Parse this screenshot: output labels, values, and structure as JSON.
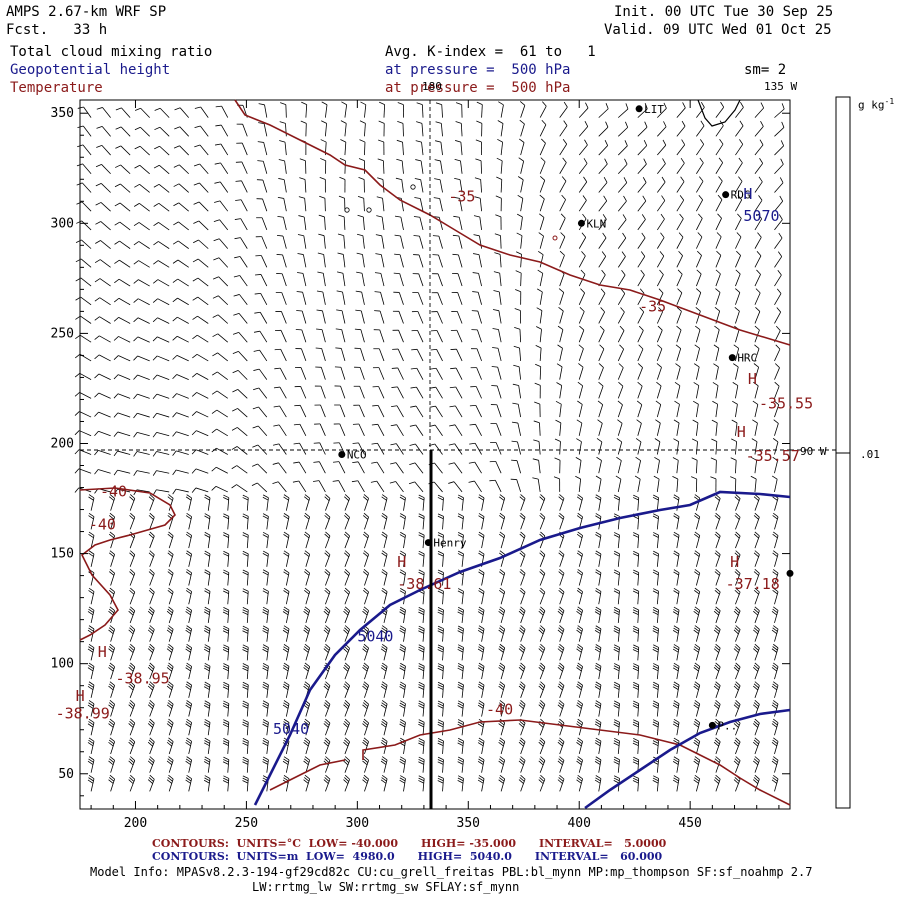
{
  "header": {
    "model": "AMPS 2.67-km WRF SP",
    "forecast": "Fcst.   33 h",
    "init": "Init. 00 UTC Tue 30 Sep 25",
    "valid": "Valid. 09 UTC Wed 01 Oct 25",
    "field1": "Total cloud mixing ratio",
    "field2": "Geopotential height",
    "field3": "Temperature",
    "avg": "Avg. K-index =  61 to   1",
    "pressure_blue": "at pressure =  500 hPa",
    "pressure_red": "at pressure =  500 hPa",
    "smoothing": "sm= 2"
  },
  "map": {
    "meridian_180": "180",
    "meridian_135w": "135 W",
    "meridian_90w": "90 W",
    "stations": [
      {
        "name": "LIT",
        "x": 427,
        "y": 352
      },
      {
        "name": "RDG",
        "x": 466,
        "y": 313
      },
      {
        "name": "KLN",
        "x": 401,
        "y": 300
      },
      {
        "name": "HRC",
        "x": 469,
        "y": 239
      },
      {
        "name": "NCO",
        "x": 293,
        "y": 195
      },
      {
        "name": "Henry",
        "x": 332,
        "y": 155
      },
      {
        "name": "",
        "x": 495,
        "y": 141
      },
      {
        "name": "P..",
        "x": 460,
        "y": 72
      }
    ],
    "temp_labels": [
      {
        "text": "-35",
        "x": 341,
        "y": 310
      },
      {
        "text": "-35",
        "x": 427,
        "y": 260
      },
      {
        "text": "-35.55",
        "x": 481,
        "y": 216
      },
      {
        "text": "-35.57",
        "x": 475,
        "y": 192
      },
      {
        "text": "-40",
        "x": 184,
        "y": 176
      },
      {
        "text": "-40",
        "x": 179,
        "y": 161
      },
      {
        "text": "-38.61",
        "x": 318,
        "y": 134
      },
      {
        "text": "-37.18",
        "x": 466,
        "y": 134
      },
      {
        "text": "-38.95",
        "x": 191,
        "y": 91
      },
      {
        "text": "-38.99",
        "x": 164,
        "y": 75
      },
      {
        "text": "-40",
        "x": 358,
        "y": 77
      }
    ],
    "temp_highs": [
      {
        "x": 476,
        "y": 227
      },
      {
        "x": 471,
        "y": 203
      },
      {
        "x": 318,
        "y": 144
      },
      {
        "x": 468,
        "y": 144
      },
      {
        "x": 183,
        "y": 103
      },
      {
        "x": 173,
        "y": 83
      }
    ],
    "height_labels": [
      {
        "text": "5070",
        "x": 474,
        "y": 301
      },
      {
        "text": "5040",
        "x": 300,
        "y": 110
      },
      {
        "text": "5040",
        "x": 262,
        "y": 68
      }
    ],
    "height_highs": [
      {
        "x": 474,
        "y": 311
      }
    ]
  },
  "axes": {
    "x_ticks": [
      200,
      250,
      300,
      350,
      400,
      450
    ],
    "y_ticks": [
      50,
      100,
      150,
      200,
      250,
      300,
      350
    ],
    "x_range": [
      175,
      495
    ],
    "y_range": [
      34,
      356
    ]
  },
  "colorbar": {
    "unit_label": "g kg",
    "unit_exp": "-1",
    "tick_value": ".01"
  },
  "footer": {
    "red_line": "CONTOURS:  UNITS=°C  LOW= -40.000      HIGH= -35.000      INTERVAL=   5.0000",
    "blue_line": "CONTOURS:  UNITS=m  LOW=  4980.0      HIGH=  5040.0      INTERVAL=   60.000",
    "model_info": "Model Info: MPASv8.2.3-194-gf29cd82c CU:cu_grell_freitas PBL:bl_mynn MP:mp_thompson SF:sf_noahmp 2.7",
    "model_info2": "LW:rrtmg_lw SW:rrtmg_sw SFLAY:sf_mynn"
  }
}
